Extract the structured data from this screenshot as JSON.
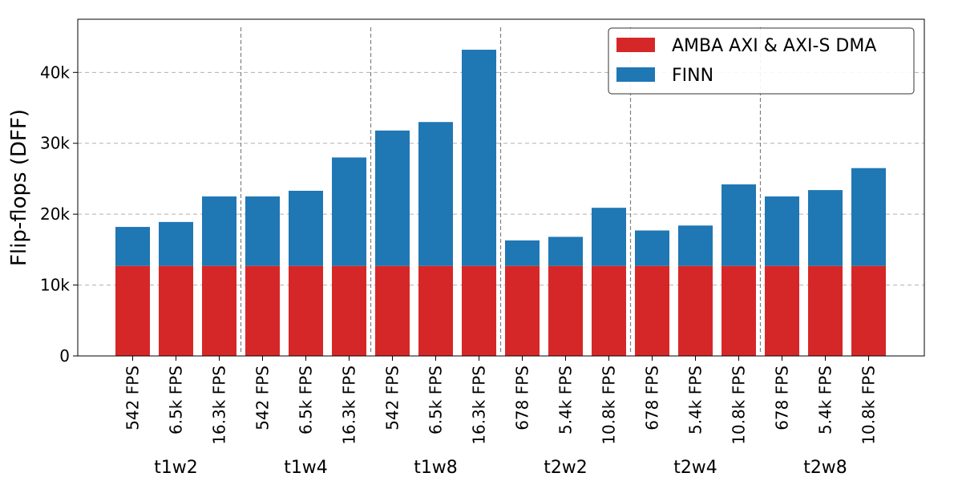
{
  "chart_data": {
    "type": "bar",
    "stacked": true,
    "ylabel": "Flip-flops (DFF)",
    "ylim": [
      0,
      47500
    ],
    "yticks": [
      {
        "value": 0,
        "label": "0"
      },
      {
        "value": 10000,
        "label": "10k"
      },
      {
        "value": 20000,
        "label": "20k"
      },
      {
        "value": 30000,
        "label": "30k"
      },
      {
        "value": 40000,
        "label": "40k"
      }
    ],
    "grid": true,
    "legend_position": "top-right",
    "categories": [
      "542 FPS",
      "6.5k FPS",
      "16.3k FPS",
      "542 FPS",
      "6.5k FPS",
      "16.3k FPS",
      "542 FPS",
      "6.5k FPS",
      "16.3k FPS",
      "678 FPS",
      "5.4k FPS",
      "10.8k FPS",
      "678 FPS",
      "5.4k FPS",
      "10.8k FPS",
      "678 FPS",
      "5.4k FPS",
      "10.8k FPS"
    ],
    "groups": [
      {
        "label": "t1w2",
        "size": 3
      },
      {
        "label": "t1w4",
        "size": 3
      },
      {
        "label": "t1w8",
        "size": 3
      },
      {
        "label": "t2w2",
        "size": 3
      },
      {
        "label": "t2w4",
        "size": 3
      },
      {
        "label": "t2w8",
        "size": 3
      }
    ],
    "series": [
      {
        "name": "AMBA AXI & AXI-S DMA",
        "color": "#d62728",
        "values": [
          12700,
          12700,
          12700,
          12700,
          12700,
          12700,
          12700,
          12700,
          12700,
          12700,
          12700,
          12700,
          12700,
          12700,
          12700,
          12700,
          12700,
          12700
        ]
      },
      {
        "name": "FINN",
        "color": "#1f77b4",
        "values": [
          5500,
          6200,
          9800,
          9800,
          10600,
          15300,
          19100,
          20300,
          30500,
          3600,
          4100,
          8200,
          5000,
          5700,
          11500,
          9800,
          10700,
          13800
        ]
      }
    ]
  }
}
